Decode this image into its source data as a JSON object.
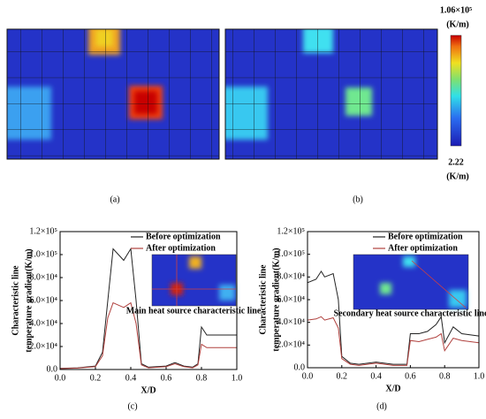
{
  "heatmaps": {
    "captions": [
      "(a)",
      "(b)"
    ],
    "colorbar": {
      "max_label": "1.06×10⁵",
      "min_label": "2.22",
      "unit": "(K/m)"
    }
  },
  "chart_data": [
    {
      "type": "line",
      "caption": "(c)",
      "xlabel": "X/D",
      "ylabel": [
        "Characteristic line",
        "temperature gradient(K/m)"
      ],
      "annotation": "Main heat source characteristic line",
      "x": [
        0,
        0.1,
        0.2,
        0.24,
        0.27,
        0.3,
        0.33,
        0.36,
        0.4,
        0.43,
        0.46,
        0.5,
        0.6,
        0.65,
        0.7,
        0.75,
        0.78,
        0.8,
        0.83,
        0.9,
        1.0
      ],
      "series": [
        {
          "name": "Before optimization",
          "color": "#222222",
          "values": [
            1000,
            1500,
            3000,
            15000,
            60000,
            105000,
            100000,
            95000,
            105000,
            60000,
            5000,
            2000,
            3000,
            6000,
            3000,
            2000,
            5000,
            37000,
            30000,
            30000,
            30000
          ]
        },
        {
          "name": "After optimization",
          "color": "#b0413e",
          "values": [
            800,
            1200,
            2500,
            12000,
            45000,
            58000,
            56000,
            54000,
            58000,
            40000,
            4000,
            1500,
            2500,
            5000,
            2500,
            1500,
            4000,
            22000,
            19000,
            19000,
            19000
          ]
        }
      ],
      "xlim": [
        0,
        1
      ],
      "ylim": [
        0,
        120000
      ],
      "xticks": [
        {
          "value": 0,
          "label": "0.0"
        },
        0.2,
        0.4,
        0.6,
        0.8,
        {
          "value": 1,
          "label": "1.0"
        }
      ],
      "yticks": [
        {
          "value": 0,
          "label": "0.0"
        },
        {
          "value": 20000,
          "label": "2.0×10⁴"
        },
        {
          "value": 40000,
          "label": "4.0×10⁴"
        },
        {
          "value": 60000,
          "label": "6.0×10⁴"
        },
        {
          "value": 80000,
          "label": "8.0×10⁴"
        },
        {
          "value": 100000,
          "label": "1.0×10⁵"
        },
        {
          "value": 120000,
          "label": "1.2×10⁵"
        }
      ],
      "legend": "upper right"
    },
    {
      "type": "line",
      "caption": "(d)",
      "xlabel": "X/D",
      "ylabel": [
        "Characteristic line",
        "temperature gradient(K/m)"
      ],
      "annotation": "Secondary heat source characteristic line",
      "x": [
        0,
        0.05,
        0.08,
        0.1,
        0.15,
        0.18,
        0.2,
        0.25,
        0.3,
        0.4,
        0.5,
        0.58,
        0.6,
        0.65,
        0.7,
        0.75,
        0.78,
        0.8,
        0.85,
        0.9,
        1.0
      ],
      "series": [
        {
          "name": "Before optimization",
          "color": "#222222",
          "values": [
            75000,
            78000,
            85000,
            80000,
            83000,
            60000,
            10000,
            4000,
            3000,
            5000,
            3000,
            3000,
            30000,
            30000,
            32000,
            38000,
            45000,
            22000,
            36000,
            30000,
            28000
          ]
        },
        {
          "name": "After optimization",
          "color": "#b0413e",
          "values": [
            42000,
            43000,
            45000,
            42000,
            44000,
            35000,
            8000,
            3000,
            2000,
            4000,
            2000,
            2000,
            24000,
            23000,
            25000,
            27000,
            30000,
            15000,
            26000,
            24000,
            22000
          ]
        }
      ],
      "xlim": [
        0,
        1
      ],
      "ylim": [
        0,
        120000
      ],
      "xticks": [
        {
          "value": 0,
          "label": "0.0"
        },
        0.2,
        0.4,
        0.6,
        0.8,
        {
          "value": 1,
          "label": "1.0"
        }
      ],
      "yticks": [
        {
          "value": 0,
          "label": "0.0"
        },
        {
          "value": 20000,
          "label": "2.0×10⁴"
        },
        {
          "value": 40000,
          "label": "4.0×10⁴"
        },
        {
          "value": 60000,
          "label": "6.0×10⁴"
        },
        {
          "value": 80000,
          "label": "8.0×10⁴"
        },
        {
          "value": 100000,
          "label": "1.0×10⁵"
        },
        {
          "value": 120000,
          "label": "1.2×10⁵"
        }
      ],
      "legend": "upper right"
    }
  ]
}
